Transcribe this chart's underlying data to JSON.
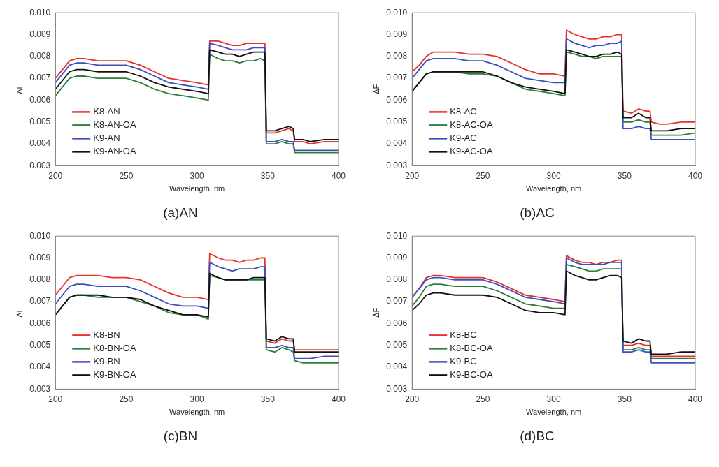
{
  "chart_data": [
    {
      "type": "line",
      "title": "(a)AN",
      "xlabel": "Wavelength, nm",
      "ylabel": "ΔF",
      "legend": "bottom left",
      "grid": false,
      "x": [
        200,
        205,
        210,
        215,
        220,
        230,
        240,
        250,
        260,
        270,
        280,
        290,
        300,
        308,
        309,
        315,
        320,
        325,
        330,
        335,
        340,
        345,
        348,
        349,
        355,
        360,
        365,
        368,
        369,
        375,
        380,
        390,
        400
      ],
      "xlim": [
        200,
        400
      ],
      "xticks": [
        200,
        250,
        300,
        350,
        400
      ],
      "ylim": [
        0.003,
        0.01
      ],
      "yticks": [
        {
          "value": 0.003,
          "label": "0.003"
        },
        {
          "value": 0.004,
          "label": "0.004"
        },
        {
          "value": 0.005,
          "label": "0.005"
        },
        {
          "value": 0.006,
          "label": "0.006"
        },
        {
          "value": 0.007,
          "label": "0.007"
        },
        {
          "value": 0.008,
          "label": "0.008"
        },
        {
          "value": 0.009,
          "label": "0.009"
        },
        {
          "value": 0.01,
          "label": "0.010"
        }
      ],
      "series": [
        {
          "name": "K8-AN",
          "color": "#e8312f",
          "values": [
            0.007,
            0.0074,
            0.0078,
            0.0079,
            0.0079,
            0.0078,
            0.0078,
            0.0078,
            0.0076,
            0.0073,
            0.007,
            0.0069,
            0.0068,
            0.0067,
            0.0087,
            0.0087,
            0.0086,
            0.0085,
            0.0085,
            0.0086,
            0.0086,
            0.0086,
            0.0086,
            0.0045,
            0.0045,
            0.0046,
            0.0047,
            0.0046,
            0.0041,
            0.0041,
            0.004,
            0.0041,
            0.0041
          ]
        },
        {
          "name": "K8-AN-OA",
          "color": "#2e7d3a",
          "values": [
            0.0062,
            0.0066,
            0.007,
            0.0071,
            0.0071,
            0.007,
            0.007,
            0.007,
            0.0068,
            0.0065,
            0.0063,
            0.0062,
            0.0061,
            0.006,
            0.0081,
            0.0079,
            0.0078,
            0.0078,
            0.0077,
            0.0078,
            0.0078,
            0.0079,
            0.0078,
            0.004,
            0.004,
            0.0041,
            0.004,
            0.004,
            0.0036,
            0.0036,
            0.0036,
            0.0036,
            0.0036
          ]
        },
        {
          "name": "K9-AN",
          "color": "#3a4fc0",
          "values": [
            0.0068,
            0.0072,
            0.0076,
            0.0077,
            0.0077,
            0.0076,
            0.0076,
            0.0076,
            0.0074,
            0.0071,
            0.0068,
            0.0067,
            0.0066,
            0.0065,
            0.0086,
            0.0085,
            0.0084,
            0.0083,
            0.0083,
            0.0083,
            0.0084,
            0.0084,
            0.0084,
            0.0041,
            0.0041,
            0.0042,
            0.0041,
            0.0041,
            0.0037,
            0.0037,
            0.0037,
            0.0037,
            0.0037
          ]
        },
        {
          "name": "K9-AN-OA",
          "color": "#111111",
          "values": [
            0.0065,
            0.0069,
            0.0073,
            0.0074,
            0.0074,
            0.0073,
            0.0073,
            0.0073,
            0.0071,
            0.0068,
            0.0066,
            0.0065,
            0.0064,
            0.0063,
            0.0083,
            0.0082,
            0.0081,
            0.0081,
            0.008,
            0.0081,
            0.0082,
            0.0082,
            0.0082,
            0.0046,
            0.0046,
            0.0047,
            0.0048,
            0.0047,
            0.0042,
            0.0042,
            0.0041,
            0.0042,
            0.0042
          ]
        }
      ]
    },
    {
      "type": "line",
      "title": "(b)AC",
      "xlabel": "Wavelength, nm",
      "ylabel": "ΔF",
      "legend": "bottom left",
      "grid": false,
      "x": [
        200,
        205,
        210,
        215,
        220,
        230,
        240,
        250,
        260,
        270,
        280,
        290,
        300,
        308,
        309,
        315,
        320,
        325,
        330,
        335,
        340,
        345,
        348,
        349,
        355,
        360,
        365,
        368,
        369,
        375,
        380,
        390,
        400
      ],
      "xlim": [
        200,
        400
      ],
      "xticks": [
        200,
        250,
        300,
        350,
        400
      ],
      "ylim": [
        0.003,
        0.01
      ],
      "yticks": [
        {
          "value": 0.003,
          "label": "0.003"
        },
        {
          "value": 0.004,
          "label": "0.004"
        },
        {
          "value": 0.005,
          "label": "0.005"
        },
        {
          "value": 0.006,
          "label": "0.006"
        },
        {
          "value": 0.007,
          "label": "0.007"
        },
        {
          "value": 0.008,
          "label": "0.008"
        },
        {
          "value": 0.009,
          "label": "0.009"
        },
        {
          "value": 0.01,
          "label": "0.010"
        }
      ],
      "series": [
        {
          "name": "K8-AC",
          "color": "#e8312f",
          "values": [
            0.0073,
            0.0076,
            0.008,
            0.0082,
            0.0082,
            0.0082,
            0.0081,
            0.0081,
            0.008,
            0.0077,
            0.0074,
            0.0072,
            0.0072,
            0.0071,
            0.0092,
            0.009,
            0.0089,
            0.0088,
            0.0088,
            0.0089,
            0.0089,
            0.009,
            0.009,
            0.0055,
            0.0054,
            0.0056,
            0.0055,
            0.0055,
            0.005,
            0.0049,
            0.0049,
            0.005,
            0.005
          ]
        },
        {
          "name": "K8-AC-OA",
          "color": "#2e7d3a",
          "values": [
            0.0064,
            0.0068,
            0.0072,
            0.0073,
            0.0073,
            0.0073,
            0.0072,
            0.0072,
            0.0071,
            0.0068,
            0.0065,
            0.0064,
            0.0063,
            0.0062,
            0.0082,
            0.0081,
            0.008,
            0.008,
            0.0079,
            0.008,
            0.008,
            0.008,
            0.008,
            0.005,
            0.005,
            0.0051,
            0.005,
            0.005,
            0.0044,
            0.0044,
            0.0044,
            0.0044,
            0.0045
          ]
        },
        {
          "name": "K9-AC",
          "color": "#3a4fc0",
          "values": [
            0.007,
            0.0074,
            0.0078,
            0.0079,
            0.0079,
            0.0079,
            0.0078,
            0.0078,
            0.0076,
            0.0073,
            0.007,
            0.0069,
            0.0068,
            0.0068,
            0.0088,
            0.0086,
            0.0085,
            0.0084,
            0.0085,
            0.0085,
            0.0086,
            0.0086,
            0.0087,
            0.0047,
            0.0047,
            0.0048,
            0.0047,
            0.0047,
            0.0042,
            0.0042,
            0.0042,
            0.0042,
            0.0042
          ]
        },
        {
          "name": "K9-AC-OA",
          "color": "#111111",
          "values": [
            0.0064,
            0.0068,
            0.0072,
            0.0073,
            0.0073,
            0.0073,
            0.0073,
            0.0073,
            0.0071,
            0.0068,
            0.0066,
            0.0065,
            0.0064,
            0.0063,
            0.0083,
            0.0082,
            0.0081,
            0.008,
            0.008,
            0.0081,
            0.0081,
            0.0082,
            0.0081,
            0.0052,
            0.0052,
            0.0054,
            0.0052,
            0.0052,
            0.0046,
            0.0046,
            0.0046,
            0.0047,
            0.0047
          ]
        }
      ]
    },
    {
      "type": "line",
      "title": "(c)BN",
      "xlabel": "Wavelength, nm",
      "ylabel": "ΔF",
      "legend": "bottom left",
      "grid": false,
      "x": [
        200,
        205,
        210,
        215,
        220,
        230,
        240,
        250,
        260,
        270,
        280,
        290,
        300,
        308,
        309,
        315,
        320,
        325,
        330,
        335,
        340,
        345,
        348,
        349,
        355,
        360,
        365,
        368,
        369,
        375,
        380,
        390,
        400
      ],
      "xlim": [
        200,
        400
      ],
      "xticks": [
        200,
        250,
        300,
        350,
        400
      ],
      "ylim": [
        0.003,
        0.01
      ],
      "yticks": [
        {
          "value": 0.003,
          "label": "0.003"
        },
        {
          "value": 0.004,
          "label": "0.004"
        },
        {
          "value": 0.005,
          "label": "0.005"
        },
        {
          "value": 0.006,
          "label": "0.006"
        },
        {
          "value": 0.007,
          "label": "0.007"
        },
        {
          "value": 0.008,
          "label": "0.008"
        },
        {
          "value": 0.009,
          "label": "0.009"
        },
        {
          "value": 0.01,
          "label": "0.010"
        }
      ],
      "series": [
        {
          "name": "K8-BN",
          "color": "#e8312f",
          "values": [
            0.0073,
            0.0077,
            0.0081,
            0.0082,
            0.0082,
            0.0082,
            0.0081,
            0.0081,
            0.008,
            0.0077,
            0.0074,
            0.0072,
            0.0072,
            0.0071,
            0.0092,
            0.009,
            0.0089,
            0.0089,
            0.0088,
            0.0089,
            0.0089,
            0.009,
            0.009,
            0.0052,
            0.0051,
            0.0053,
            0.0052,
            0.0052,
            0.0048,
            0.0048,
            0.0048,
            0.0048,
            0.0048
          ]
        },
        {
          "name": "K8-BN-OA",
          "color": "#2e7d3a",
          "values": [
            0.0064,
            0.0068,
            0.0072,
            0.0073,
            0.0073,
            0.0072,
            0.0072,
            0.0072,
            0.007,
            0.0068,
            0.0065,
            0.0064,
            0.0064,
            0.0062,
            0.0082,
            0.0081,
            0.008,
            0.008,
            0.008,
            0.008,
            0.008,
            0.008,
            0.008,
            0.0048,
            0.0047,
            0.0049,
            0.0048,
            0.0047,
            0.0043,
            0.0042,
            0.0042,
            0.0042,
            0.0042
          ]
        },
        {
          "name": "K9-BN",
          "color": "#3a4fc0",
          "values": [
            0.0069,
            0.0073,
            0.0077,
            0.0078,
            0.0078,
            0.0077,
            0.0077,
            0.0077,
            0.0075,
            0.0072,
            0.0069,
            0.0068,
            0.0068,
            0.0067,
            0.0088,
            0.0086,
            0.0085,
            0.0084,
            0.0085,
            0.0085,
            0.0085,
            0.0086,
            0.0086,
            0.0049,
            0.0049,
            0.005,
            0.0049,
            0.0049,
            0.0044,
            0.0044,
            0.0044,
            0.0045,
            0.0045
          ]
        },
        {
          "name": "K9-BN-OA",
          "color": "#111111",
          "values": [
            0.0064,
            0.0068,
            0.0072,
            0.0073,
            0.0073,
            0.0073,
            0.0072,
            0.0072,
            0.0071,
            0.0068,
            0.0066,
            0.0064,
            0.0064,
            0.0063,
            0.0083,
            0.0081,
            0.008,
            0.008,
            0.008,
            0.008,
            0.0081,
            0.0081,
            0.0081,
            0.0053,
            0.0052,
            0.0054,
            0.0053,
            0.0053,
            0.0047,
            0.0047,
            0.0047,
            0.0047,
            0.0047
          ]
        }
      ]
    },
    {
      "type": "line",
      "title": "(d)BC",
      "xlabel": "Wavelength, nm",
      "ylabel": "ΔF",
      "legend": "bottom left",
      "grid": false,
      "x": [
        200,
        205,
        210,
        215,
        220,
        230,
        240,
        250,
        260,
        270,
        280,
        290,
        300,
        308,
        309,
        315,
        320,
        325,
        330,
        335,
        340,
        345,
        348,
        349,
        355,
        360,
        365,
        368,
        369,
        375,
        380,
        390,
        400
      ],
      "xlim": [
        200,
        400
      ],
      "xticks": [
        200,
        250,
        300,
        350,
        400
      ],
      "ylim": [
        0.003,
        0.01
      ],
      "yticks": [
        {
          "value": 0.003,
          "label": "0.003"
        },
        {
          "value": 0.004,
          "label": "0.004"
        },
        {
          "value": 0.005,
          "label": "0.005"
        },
        {
          "value": 0.006,
          "label": "0.006"
        },
        {
          "value": 0.007,
          "label": "0.007"
        },
        {
          "value": 0.008,
          "label": "0.008"
        },
        {
          "value": 0.009,
          "label": "0.009"
        },
        {
          "value": 0.01,
          "label": "0.010"
        }
      ],
      "series": [
        {
          "name": "K8-BC",
          "color": "#e8312f",
          "values": [
            0.0072,
            0.0076,
            0.0081,
            0.0082,
            0.0082,
            0.0081,
            0.0081,
            0.0081,
            0.0079,
            0.0076,
            0.0073,
            0.0072,
            0.0071,
            0.007,
            0.0091,
            0.0089,
            0.0088,
            0.0088,
            0.0087,
            0.0088,
            0.0088,
            0.0089,
            0.0089,
            0.005,
            0.005,
            0.0051,
            0.005,
            0.005,
            0.0045,
            0.0045,
            0.0045,
            0.0045,
            0.0045
          ]
        },
        {
          "name": "K8-BC-OA",
          "color": "#2e7d3a",
          "values": [
            0.0068,
            0.0072,
            0.0077,
            0.0078,
            0.0078,
            0.0077,
            0.0077,
            0.0077,
            0.0075,
            0.0072,
            0.0069,
            0.0068,
            0.0067,
            0.0067,
            0.0087,
            0.0086,
            0.0085,
            0.0084,
            0.0084,
            0.0085,
            0.0085,
            0.0085,
            0.0085,
            0.0048,
            0.0048,
            0.0049,
            0.0048,
            0.0048,
            0.0044,
            0.0044,
            0.0044,
            0.0044,
            0.0044
          ]
        },
        {
          "name": "K9-BC",
          "color": "#3a4fc0",
          "values": [
            0.0072,
            0.0076,
            0.008,
            0.0081,
            0.0081,
            0.008,
            0.008,
            0.008,
            0.0078,
            0.0075,
            0.0072,
            0.0071,
            0.007,
            0.0069,
            0.009,
            0.0088,
            0.0087,
            0.0087,
            0.0087,
            0.0087,
            0.0088,
            0.0088,
            0.0088,
            0.0047,
            0.0047,
            0.0048,
            0.0047,
            0.0047,
            0.0042,
            0.0042,
            0.0042,
            0.0042,
            0.0042
          ]
        },
        {
          "name": "K9-BC-OA",
          "color": "#111111",
          "values": [
            0.0066,
            0.0069,
            0.0073,
            0.0074,
            0.0074,
            0.0073,
            0.0073,
            0.0073,
            0.0072,
            0.0069,
            0.0066,
            0.0065,
            0.0065,
            0.0064,
            0.0084,
            0.0082,
            0.0081,
            0.008,
            0.008,
            0.0081,
            0.0082,
            0.0082,
            0.0081,
            0.0052,
            0.0051,
            0.0053,
            0.0052,
            0.0052,
            0.0046,
            0.0046,
            0.0046,
            0.0047,
            0.0047
          ]
        }
      ]
    }
  ]
}
